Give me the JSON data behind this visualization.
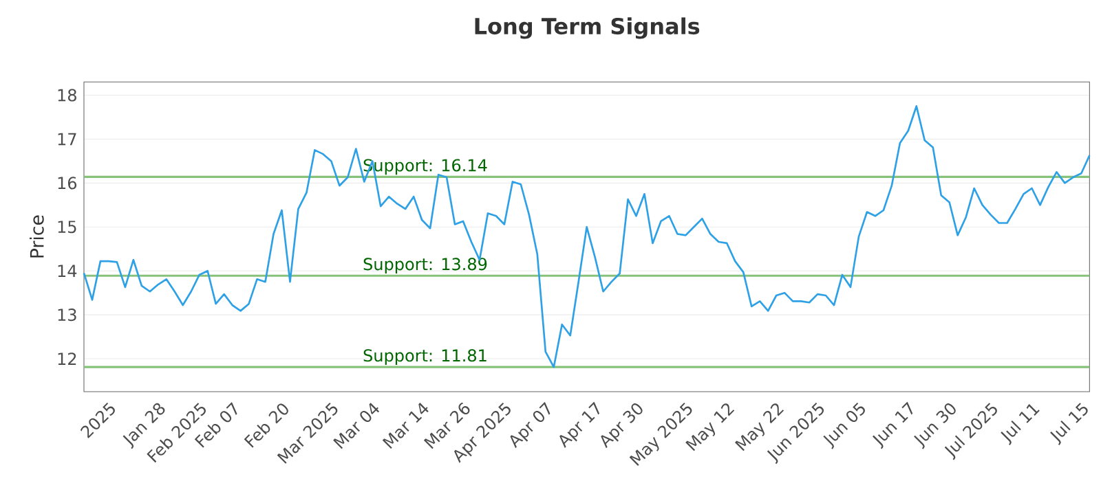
{
  "chart_data": {
    "type": "line",
    "title": "Long Term Signals",
    "ylabel": "Price",
    "categories": [
      null,
      null,
      null,
      "2025",
      null,
      null,
      null,
      null,
      null,
      "Jan 28",
      null,
      null,
      null,
      null,
      "Feb 2025",
      null,
      null,
      null,
      "Feb 07",
      null,
      null,
      null,
      null,
      null,
      "Feb 20",
      null,
      null,
      null,
      null,
      null,
      "Mar 2025",
      null,
      null,
      null,
      null,
      "Mar 04",
      null,
      null,
      null,
      null,
      null,
      "Mar 14",
      null,
      null,
      null,
      null,
      "Mar 26",
      null,
      null,
      null,
      null,
      "Apr 2025",
      null,
      null,
      null,
      null,
      "Apr 07",
      null,
      null,
      null,
      null,
      null,
      "Apr 17",
      null,
      null,
      null,
      null,
      "Apr 30",
      null,
      null,
      null,
      null,
      null,
      "May 2025",
      null,
      null,
      null,
      null,
      "May 12",
      null,
      null,
      null,
      null,
      null,
      "May 22",
      null,
      null,
      null,
      null,
      "Jun 2025",
      null,
      null,
      null,
      null,
      "Jun 05",
      null,
      null,
      null,
      null,
      null,
      "Jun 17",
      null,
      null,
      null,
      null,
      "Jun 30",
      null,
      null,
      null,
      null,
      "Jul 2025",
      null,
      null,
      null,
      null,
      "Jul 11",
      null,
      null,
      null,
      null,
      null,
      "Jul 15",
      null
    ],
    "values": [
      13.95,
      13.34,
      14.22,
      14.22,
      14.2,
      13.63,
      14.25,
      13.66,
      13.53,
      13.69,
      13.81,
      13.53,
      13.22,
      13.53,
      13.91,
      14.0,
      13.25,
      13.47,
      13.22,
      13.09,
      13.25,
      13.81,
      13.75,
      14.84,
      15.38,
      13.75,
      15.41,
      15.78,
      16.75,
      16.66,
      16.5,
      15.94,
      16.13,
      16.78,
      16.03,
      16.5,
      15.47,
      15.69,
      15.53,
      15.41,
      15.69,
      15.16,
      14.97,
      16.19,
      16.13,
      15.06,
      15.13,
      14.66,
      14.25,
      15.31,
      15.25,
      15.06,
      16.03,
      15.97,
      15.28,
      14.38,
      12.16,
      11.81,
      12.78,
      12.53,
      13.75,
      15.0,
      14.31,
      13.53,
      13.75,
      13.94,
      15.63,
      15.25,
      15.75,
      14.63,
      15.13,
      15.25,
      14.84,
      14.81,
      15.0,
      15.19,
      14.84,
      14.66,
      14.63,
      14.22,
      13.97,
      13.19,
      13.31,
      13.09,
      13.44,
      13.5,
      13.31,
      13.31,
      13.28,
      13.47,
      13.44,
      13.22,
      13.91,
      13.63,
      14.78,
      15.34,
      15.25,
      15.38,
      15.94,
      16.91,
      17.19,
      17.75,
      16.97,
      16.81,
      15.72,
      15.56,
      14.81,
      15.22,
      15.88,
      15.5,
      15.28,
      15.09,
      15.09,
      15.41,
      15.75,
      15.88,
      15.5,
      15.91,
      16.25,
      16.0,
      16.13,
      16.22,
      16.63
    ],
    "color": "#2ea1e6",
    "ylim": [
      11.25,
      18.3
    ],
    "yticks": [
      12,
      13,
      14,
      15,
      16,
      17,
      18
    ],
    "grid": "y",
    "ref_lines": [
      {
        "axis": "y",
        "value": 16.14,
        "label": "Support: 16.14",
        "color": "#86c27a"
      },
      {
        "axis": "y",
        "value": 13.89,
        "label": "Support: 13.89",
        "color": "#86c27a"
      },
      {
        "axis": "y",
        "value": 11.81,
        "label": "Support: 11.81",
        "color": "#86c27a"
      }
    ]
  }
}
